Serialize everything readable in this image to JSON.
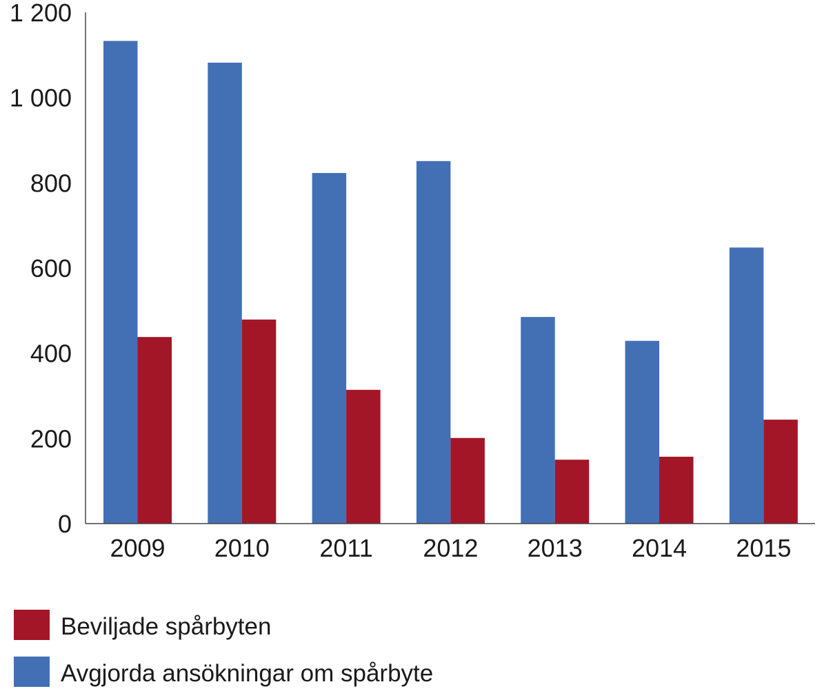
{
  "chart_data": {
    "type": "bar",
    "categories": [
      "2009",
      "2010",
      "2011",
      "2012",
      "2013",
      "2014",
      "2015"
    ],
    "series": [
      {
        "name": "Avgjorda ansökningar om spårbyte",
        "color": "#4370b5",
        "values": [
          1133,
          1082,
          823,
          851,
          485,
          429,
          648
        ]
      },
      {
        "name": "Beviljade spårbyten",
        "color": "#a31627",
        "values": [
          438,
          479,
          314,
          201,
          150,
          157,
          244
        ]
      }
    ],
    "yticks": [
      "0",
      "200",
      "400",
      "600",
      "800",
      "1 000",
      "1 200"
    ],
    "ylim": [
      0,
      1200
    ],
    "grid": false,
    "legend": {
      "position": "bottom-left",
      "items": [
        {
          "label": "Beviljade spårbyten",
          "color": "#a31627"
        },
        {
          "label": "Avgjorda ansökningar om spårbyte",
          "color": "#4370b5"
        }
      ]
    },
    "title": "",
    "xlabel": "",
    "ylabel": ""
  }
}
